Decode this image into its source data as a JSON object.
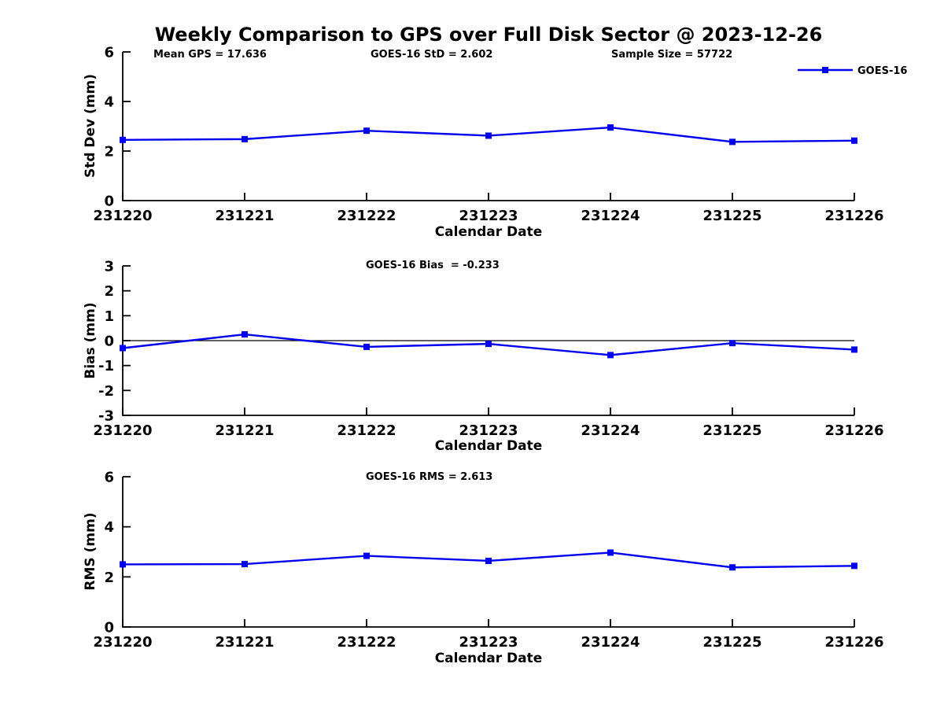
{
  "title": "Weekly Comparison to GPS over Full Disk Sector @ 2023-12-26",
  "legend": {
    "label": "GOES-16",
    "color": "#0000ee",
    "marker": "square"
  },
  "chart_data": [
    {
      "type": "line",
      "name": "std-dev-panel",
      "ylabel": "Std Dev (mm)",
      "xlabel": "Calendar Date",
      "ylim": [
        0,
        6
      ],
      "yticks": [
        0,
        2,
        4,
        6
      ],
      "grid": false,
      "legend_position": "top-right-outside",
      "categories": [
        "231220",
        "231221",
        "231222",
        "231223",
        "231224",
        "231225",
        "231226"
      ],
      "series": [
        {
          "name": "GOES-16",
          "color": "#0000ee",
          "marker": "square",
          "values": [
            2.45,
            2.48,
            2.82,
            2.62,
            2.95,
            2.37,
            2.42
          ]
        }
      ],
      "annotations": [
        {
          "text": "Mean GPS = 17.636"
        },
        {
          "text": "GOES-16 StD = 2.602"
        },
        {
          "text": "Sample Size = 57722"
        }
      ]
    },
    {
      "type": "line",
      "name": "bias-panel",
      "ylabel": "Bias (mm)",
      "xlabel": "Calendar Date",
      "ylim": [
        -3,
        3
      ],
      "yticks": [
        -3,
        -2,
        -1,
        0,
        1,
        2,
        3
      ],
      "zero_line": true,
      "grid": false,
      "categories": [
        "231220",
        "231221",
        "231222",
        "231223",
        "231224",
        "231225",
        "231226"
      ],
      "series": [
        {
          "name": "GOES-16",
          "color": "#0000ee",
          "marker": "square",
          "values": [
            -0.3,
            0.25,
            -0.25,
            -0.13,
            -0.58,
            -0.1,
            -0.36
          ]
        }
      ],
      "annotations": [
        {
          "text": "GOES-16 Bias  = -0.233"
        }
      ]
    },
    {
      "type": "line",
      "name": "rms-panel",
      "ylabel": "RMS (mm)",
      "xlabel": "Calendar Date",
      "ylim": [
        0,
        6
      ],
      "yticks": [
        0,
        2,
        4,
        6
      ],
      "grid": false,
      "categories": [
        "231220",
        "231221",
        "231222",
        "231223",
        "231224",
        "231225",
        "231226"
      ],
      "series": [
        {
          "name": "GOES-16",
          "color": "#0000ee",
          "marker": "square",
          "values": [
            2.5,
            2.51,
            2.84,
            2.64,
            2.97,
            2.38,
            2.44
          ]
        }
      ],
      "annotations": [
        {
          "text": "GOES-16 RMS = 2.613"
        }
      ]
    }
  ]
}
